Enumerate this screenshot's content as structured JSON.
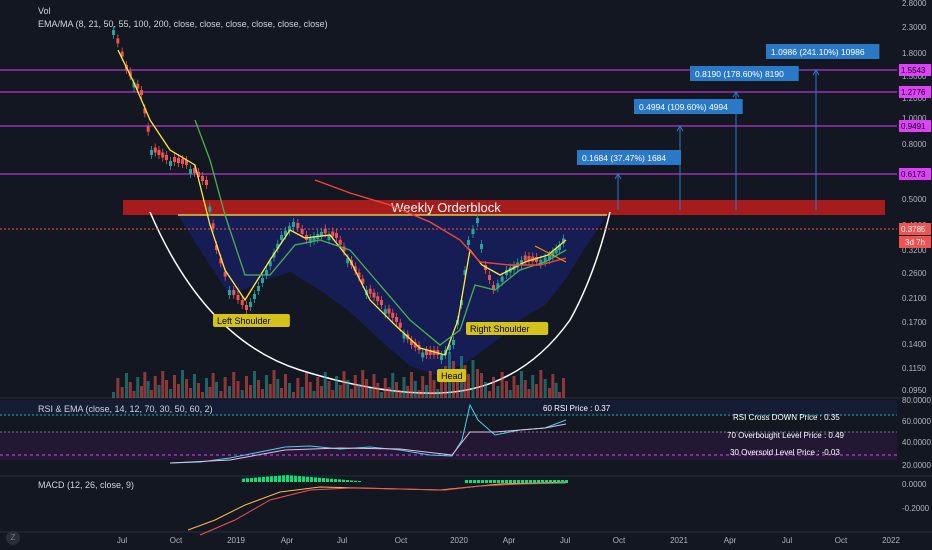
{
  "indicators": {
    "vol_label": "Vol",
    "ema_label": "EMA/MA (8, 21, 50, 55, 100, 200, close, close, close, close, close, close)",
    "rsi_label": "RSI & EMA (close, 14, 12, 70, 30, 50, 60, 2)",
    "macd_label": "MACD (12, 26, close, 9)"
  },
  "chart_data": {
    "type": "candlestick",
    "price_axis_ticks": [
      "2.8000",
      "2.3000",
      "1.8000",
      "1.5000",
      "1.2000",
      "1.0000",
      "0.8000",
      "0.6500",
      "0.5000",
      "0.4000",
      "0.3200",
      "0.2600",
      "0.2100",
      "0.1700",
      "0.1400",
      "0.1150",
      "0.0950"
    ],
    "time_axis_ticks": [
      "Jul",
      "Oct",
      "2019",
      "Apr",
      "Jul",
      "Oct",
      "2020",
      "Apr",
      "Jul",
      "Oct",
      "2021",
      "Apr",
      "Jul",
      "Oct",
      "2022"
    ],
    "horizontal_levels": [
      {
        "label": "1.5543",
        "color": "#e040fb"
      },
      {
        "label": "1.2776",
        "color": "#e040fb"
      },
      {
        "label": "0.9491",
        "color": "#e040fb"
      },
      {
        "label": "0.6173",
        "color": "#e040fb"
      }
    ],
    "current_price": "0.3785",
    "countdown": "3d 7h",
    "orderblock_label": "Weekly Orderblock",
    "pattern_labels": [
      "Left Shoulder",
      "Head",
      "Right Shoulder"
    ],
    "targets": [
      {
        "text": "0.1684 (37.47%) 1684"
      },
      {
        "text": "0.4994 (109.60%) 4994"
      },
      {
        "text": "0.8190 (178.60%) 8190"
      },
      {
        "text": "1.0986 (241.10%) 10986"
      }
    ],
    "rsi": {
      "axis_ticks": [
        "80.0000",
        "60.0000",
        "40.0000",
        "20.0000"
      ],
      "labels": [
        "60 RSI Price : 0.37",
        "RSI Cross DOWN Price : 0.35",
        "70 Overbought Level Price : 0.49",
        "30 Oversold Level Price : -0.03"
      ]
    },
    "macd": {
      "axis_ticks": [
        "0.0000",
        "-0.2000"
      ]
    },
    "colors": {
      "background": "#131722",
      "up": "#26a69a",
      "down": "#ef5350",
      "ema_fast": "#ffeb3b",
      "ema_mid": "#4caf50",
      "ma_slow": "#f44336",
      "level": "#e040fb",
      "target_box": "#2979c8",
      "orderblock": "#b71c1c",
      "pattern_fill": "#1a237e",
      "label_bg": "#d4c21a"
    }
  }
}
